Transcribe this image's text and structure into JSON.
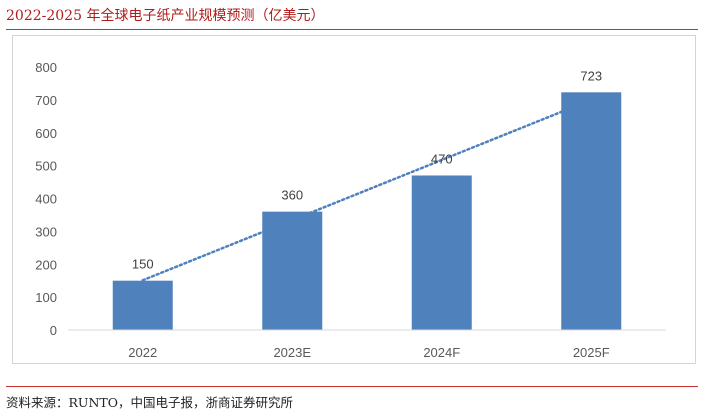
{
  "header": {
    "title": "2022-2025 年全球电子纸产业规模预测（亿美元）"
  },
  "footer": {
    "source": "资料来源：RUNTO，中国电子报，浙商证券研究所"
  },
  "colors": {
    "bar": "#4f81bd",
    "trendline": "#4f81bd",
    "rule": "#c4312a",
    "title": "#b11b1b"
  },
  "chart_data": {
    "type": "bar",
    "title": "",
    "xlabel": "",
    "ylabel": "",
    "categories": [
      "2022",
      "2023E",
      "2024F",
      "2025F"
    ],
    "values": [
      150,
      360,
      470,
      723
    ],
    "data_labels": [
      "150",
      "360",
      "470",
      "723"
    ],
    "ylim": [
      0,
      800
    ],
    "y_ticks": [
      0,
      100,
      200,
      300,
      400,
      500,
      600,
      700,
      800
    ],
    "y_tick_labels": [
      "0",
      "100",
      "200",
      "300",
      "400",
      "500",
      "600",
      "700",
      "800"
    ],
    "grid": false,
    "legend": "none",
    "trendline": {
      "type": "linear",
      "style": "dotted"
    }
  }
}
